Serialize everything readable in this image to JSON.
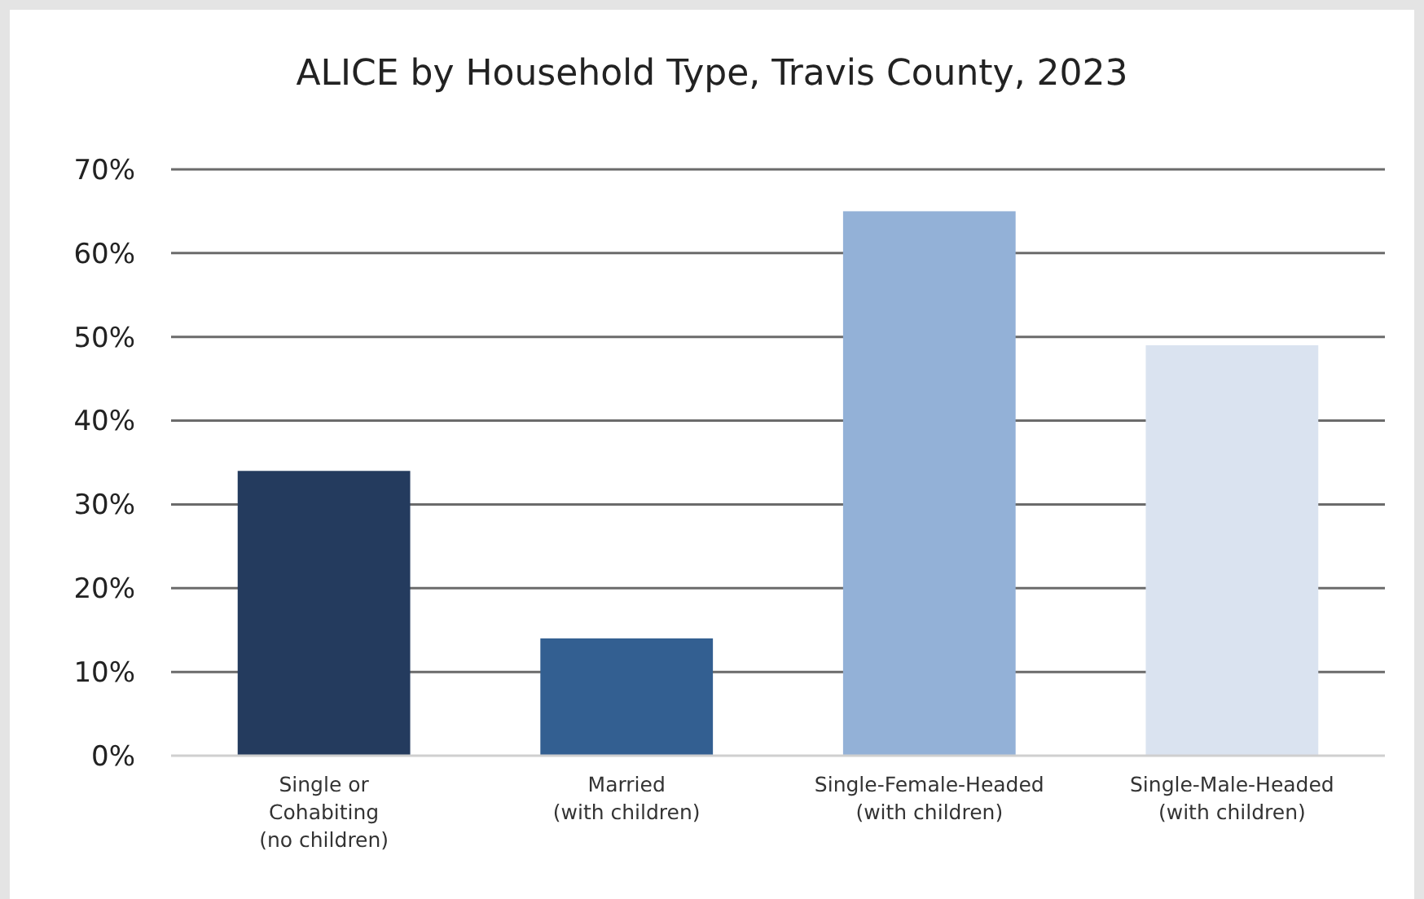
{
  "chart_data": {
    "type": "bar",
    "title": "ALICE by Household Type, Travis County, 2023",
    "categories": [
      "Single or\nCohabiting\n(no children)",
      "Married\n(with children)",
      "Single-Female-Headed\n(with children)",
      "Single-Male-Headed\n(with children)"
    ],
    "values": [
      34,
      14,
      65,
      49
    ],
    "colors": [
      "#243b5e",
      "#335f91",
      "#93b1d7",
      "#dae3f0"
    ],
    "ylim": [
      0,
      70
    ],
    "yticks": [
      {
        "value": 0,
        "label": "0%"
      },
      {
        "value": 10,
        "label": "10%"
      },
      {
        "value": 20,
        "label": "20%"
      },
      {
        "value": 30,
        "label": "30%"
      },
      {
        "value": 40,
        "label": "40%"
      },
      {
        "value": 50,
        "label": "50%"
      },
      {
        "value": 60,
        "label": "60%"
      },
      {
        "value": 70,
        "label": "70%"
      }
    ],
    "grid": "y"
  }
}
